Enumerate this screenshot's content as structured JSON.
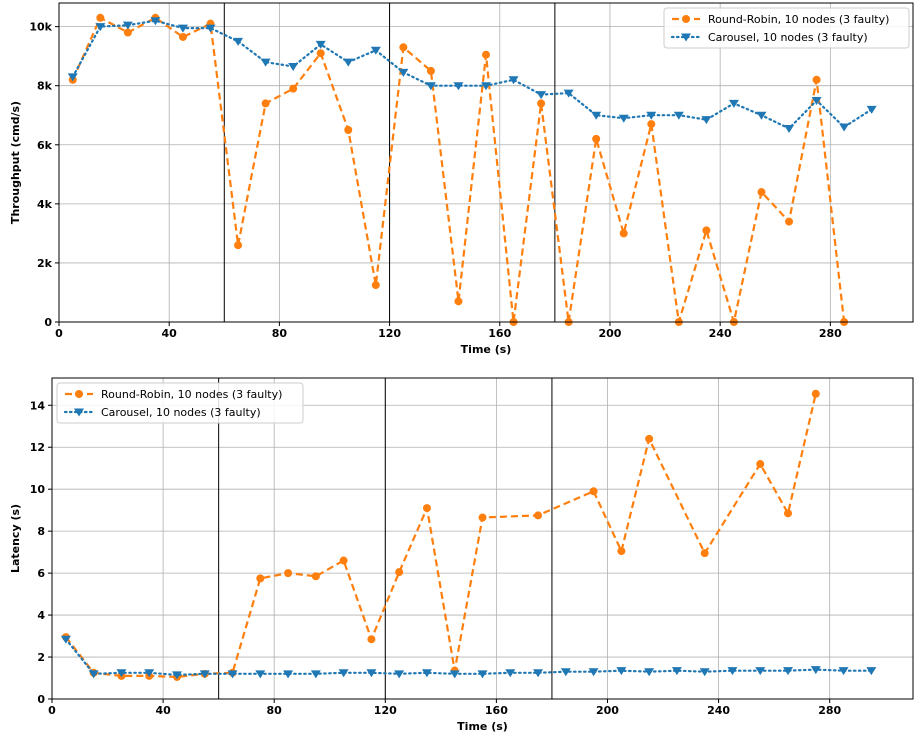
{
  "chart_data": [
    {
      "type": "line",
      "xlabel": "Time (s)",
      "ylabel": "Throughput (cmd/s)",
      "xlim": [
        0,
        310
      ],
      "ylim": [
        0,
        10800
      ],
      "xticks": [
        0,
        40,
        80,
        120,
        160,
        200,
        240,
        280
      ],
      "xtick_labels": [
        "0",
        "40",
        "80",
        "120",
        "160",
        "200",
        "240",
        "280"
      ],
      "yticks": [
        0,
        2000,
        4000,
        6000,
        8000,
        10000
      ],
      "ytick_labels": [
        "0",
        "2k",
        "4k",
        "6k",
        "8k",
        "10k"
      ],
      "vlines": [
        60,
        120,
        180
      ],
      "grid": true,
      "legend_position": "top-right",
      "series": [
        {
          "name": "Round-Robin, 10 nodes (3 faulty)",
          "color": "#ff7f0e",
          "marker": "circle",
          "linestyle": "dashed",
          "x": [
            5,
            15,
            25,
            35,
            45,
            55,
            65,
            75,
            85,
            95,
            105,
            115,
            125,
            135,
            145,
            155,
            165,
            175,
            185,
            195,
            205,
            215,
            225,
            235,
            245,
            255,
            265,
            275,
            285
          ],
          "y": [
            8200,
            10300,
            9800,
            10300,
            9650,
            10100,
            2600,
            7400,
            7900,
            9100,
            6500,
            1250,
            9300,
            8500,
            700,
            9050,
            0,
            7400,
            0,
            6200,
            3000,
            6700,
            0,
            3100,
            0,
            4400,
            3400,
            8200,
            0
          ]
        },
        {
          "name": "Carousel, 10 nodes (3 faulty)",
          "color": "#1f77b4",
          "marker": "triangle-down",
          "linestyle": "dotted",
          "x": [
            5,
            15,
            25,
            35,
            45,
            55,
            65,
            75,
            85,
            95,
            105,
            115,
            125,
            135,
            145,
            155,
            165,
            175,
            185,
            195,
            205,
            215,
            225,
            235,
            245,
            255,
            265,
            275,
            285,
            295
          ],
          "y": [
            8300,
            10000,
            10050,
            10200,
            9950,
            9950,
            9500,
            8800,
            8650,
            9400,
            8800,
            9200,
            8450,
            8000,
            8000,
            8000,
            8200,
            7700,
            7750,
            7000,
            6900,
            7000,
            7000,
            6850,
            7400,
            7000,
            6550,
            7500,
            6600,
            7200
          ]
        }
      ]
    },
    {
      "type": "line",
      "xlabel": "Time (s)",
      "ylabel": "Latency (s)",
      "xlim": [
        0,
        310
      ],
      "ylim": [
        0,
        15.3
      ],
      "xticks": [
        0,
        40,
        80,
        120,
        160,
        200,
        240,
        280
      ],
      "xtick_labels": [
        "0",
        "40",
        "80",
        "120",
        "160",
        "200",
        "240",
        "280"
      ],
      "yticks": [
        0,
        2,
        4,
        6,
        8,
        10,
        12,
        14
      ],
      "ytick_labels": [
        "0",
        "2",
        "4",
        "6",
        "8",
        "10",
        "12",
        "14"
      ],
      "vlines": [
        60,
        120,
        180
      ],
      "grid": true,
      "legend_position": "top-left",
      "series": [
        {
          "name": "Round-Robin, 10 nodes (3 faulty)",
          "color": "#ff7f0e",
          "marker": "circle",
          "linestyle": "dashed",
          "x": [
            5,
            15,
            25,
            35,
            45,
            55,
            65,
            75,
            85,
            95,
            105,
            115,
            125,
            135,
            145,
            155,
            175,
            195,
            205,
            215,
            235,
            255,
            265,
            275
          ],
          "y": [
            2.95,
            1.25,
            1.1,
            1.1,
            1.05,
            1.2,
            1.25,
            5.75,
            6.0,
            5.85,
            6.6,
            2.85,
            6.05,
            9.1,
            1.35,
            8.65,
            8.75,
            9.9,
            7.05,
            12.4,
            6.95,
            11.2,
            8.85,
            14.55
          ]
        },
        {
          "name": "Carousel, 10 nodes (3 faulty)",
          "color": "#1f77b4",
          "marker": "triangle-down",
          "linestyle": "dotted",
          "x": [
            5,
            15,
            25,
            35,
            45,
            55,
            65,
            75,
            85,
            95,
            105,
            115,
            125,
            135,
            145,
            155,
            165,
            175,
            185,
            195,
            205,
            215,
            225,
            235,
            245,
            255,
            265,
            275,
            285,
            295
          ],
          "y": [
            2.85,
            1.2,
            1.25,
            1.25,
            1.15,
            1.2,
            1.2,
            1.2,
            1.2,
            1.2,
            1.25,
            1.25,
            1.2,
            1.25,
            1.2,
            1.2,
            1.25,
            1.25,
            1.3,
            1.3,
            1.35,
            1.3,
            1.35,
            1.3,
            1.35,
            1.35,
            1.35,
            1.4,
            1.35,
            1.35
          ]
        }
      ]
    }
  ]
}
